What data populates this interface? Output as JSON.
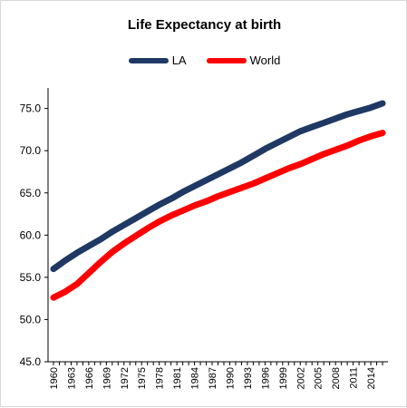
{
  "chart_data": {
    "type": "line",
    "title": "Life Expectancy at birth",
    "xlabel": "",
    "ylabel": "",
    "ylim": [
      45,
      77
    ],
    "yticks": [
      45,
      50,
      55,
      60,
      65,
      70,
      75
    ],
    "ytick_labels": [
      "45.0",
      "50.0",
      "55.0",
      "60.0",
      "65.0",
      "70.0",
      "75.0"
    ],
    "xrange": [
      1960,
      2016
    ],
    "xtick_labels": [
      "1960",
      "1963",
      "1966",
      "1969",
      "1972",
      "1975",
      "1978",
      "1981",
      "1984",
      "1987",
      "1990",
      "1993",
      "1996",
      "1999",
      "2002",
      "2005",
      "2008",
      "2011",
      "2014"
    ],
    "grid": false,
    "legend_position": "top",
    "series": [
      {
        "name": "LA",
        "color": "#1f3864",
        "points": [
          [
            1960,
            56.0
          ],
          [
            1962,
            57.0
          ],
          [
            1964,
            57.9
          ],
          [
            1966,
            58.7
          ],
          [
            1968,
            59.5
          ],
          [
            1970,
            60.4
          ],
          [
            1972,
            61.2
          ],
          [
            1974,
            62.0
          ],
          [
            1976,
            62.8
          ],
          [
            1978,
            63.6
          ],
          [
            1980,
            64.3
          ],
          [
            1982,
            65.1
          ],
          [
            1984,
            65.8
          ],
          [
            1986,
            66.5
          ],
          [
            1988,
            67.2
          ],
          [
            1990,
            67.9
          ],
          [
            1992,
            68.6
          ],
          [
            1994,
            69.4
          ],
          [
            1996,
            70.2
          ],
          [
            1998,
            70.9
          ],
          [
            2000,
            71.6
          ],
          [
            2002,
            72.3
          ],
          [
            2004,
            72.8
          ],
          [
            2006,
            73.3
          ],
          [
            2008,
            73.8
          ],
          [
            2010,
            74.3
          ],
          [
            2012,
            74.7
          ],
          [
            2014,
            75.1
          ],
          [
            2016,
            75.6
          ]
        ]
      },
      {
        "name": "World",
        "color": "#ff0000",
        "points": [
          [
            1960,
            52.6
          ],
          [
            1962,
            53.3
          ],
          [
            1964,
            54.2
          ],
          [
            1966,
            55.5
          ],
          [
            1968,
            56.8
          ],
          [
            1970,
            58.0
          ],
          [
            1972,
            59.0
          ],
          [
            1974,
            59.9
          ],
          [
            1976,
            60.8
          ],
          [
            1978,
            61.6
          ],
          [
            1980,
            62.3
          ],
          [
            1982,
            62.9
          ],
          [
            1984,
            63.5
          ],
          [
            1986,
            64.0
          ],
          [
            1988,
            64.6
          ],
          [
            1990,
            65.1
          ],
          [
            1992,
            65.6
          ],
          [
            1994,
            66.1
          ],
          [
            1996,
            66.7
          ],
          [
            1998,
            67.3
          ],
          [
            2000,
            67.9
          ],
          [
            2002,
            68.4
          ],
          [
            2004,
            69.0
          ],
          [
            2006,
            69.6
          ],
          [
            2008,
            70.1
          ],
          [
            2010,
            70.6
          ],
          [
            2012,
            71.2
          ],
          [
            2014,
            71.7
          ],
          [
            2016,
            72.1
          ]
        ]
      }
    ]
  }
}
